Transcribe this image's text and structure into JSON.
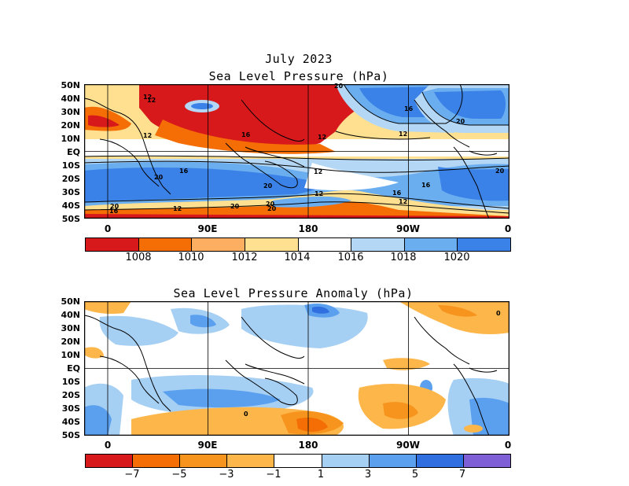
{
  "header": {
    "date_title": "July 2023"
  },
  "top_map": {
    "title": "Sea Level Pressure (hPa)",
    "lat_labels": [
      "50N",
      "40N",
      "30N",
      "20N",
      "10N",
      "EQ",
      "10S",
      "20S",
      "30S",
      "40S",
      "50S"
    ],
    "lon_labels": [
      "0",
      "90E",
      "180",
      "90W",
      "0"
    ],
    "contour_labels": [
      "20",
      "12",
      "20",
      "16",
      "12",
      "16",
      "12",
      "12",
      "12",
      "20",
      "20",
      "16",
      "12",
      "16",
      "12",
      "20",
      "16",
      "12",
      "20",
      "12",
      "20",
      "16",
      "20",
      "20"
    ],
    "colorbar": {
      "colors": [
        "#d7191c",
        "#f46d05",
        "#fdae61",
        "#fee090",
        "#ffffff",
        "#b4d7f5",
        "#6aaef0",
        "#3b82e8"
      ],
      "labels": [
        "1008",
        "1010",
        "1012",
        "1014",
        "1016",
        "1018",
        "1020"
      ]
    }
  },
  "bottom_map": {
    "title": "Sea Level Pressure Anomaly (hPa)",
    "lat_labels": [
      "50N",
      "40N",
      "30N",
      "20N",
      "10N",
      "EQ",
      "10S",
      "20S",
      "30S",
      "40S",
      "50S"
    ],
    "lon_labels": [
      "0",
      "90E",
      "180",
      "90W",
      "0"
    ],
    "contour_labels": [
      "0",
      "0"
    ],
    "colorbar": {
      "colors": [
        "#d7191c",
        "#f46d05",
        "#f7941d",
        "#fdb64a",
        "#ffffff",
        "#a6cff4",
        "#5aa0ef",
        "#2f6fe0",
        "#7f5fd6"
      ],
      "labels": [
        "−7",
        "−5",
        "−3",
        "−1",
        "1",
        "3",
        "5",
        "7"
      ]
    }
  }
}
